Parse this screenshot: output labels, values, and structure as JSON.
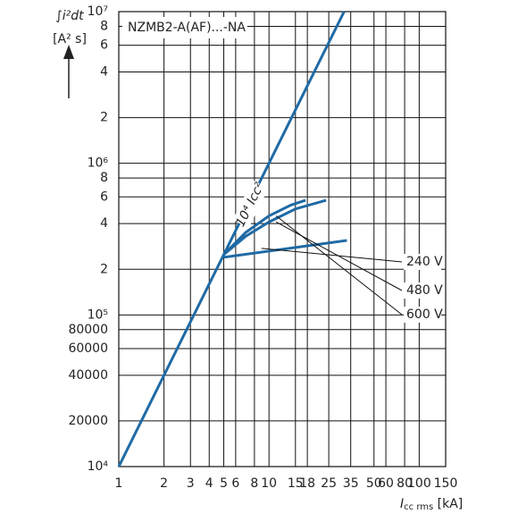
{
  "chart_data": {
    "type": "line",
    "title": "NZMB2-A(AF)...-NA",
    "y_label": [
      "∫i²dt",
      "[A² s]"
    ],
    "x_label": [
      "I",
      "cc rms",
      " [kA]"
    ],
    "log_x": true,
    "log_y": true,
    "grid": true,
    "xlim": [
      1,
      150
    ],
    "ylim": [
      10000,
      10000000
    ],
    "xticks": [
      1,
      2,
      3,
      4,
      5,
      6,
      8,
      10,
      15,
      18,
      25,
      35,
      50,
      60,
      80,
      100,
      150
    ],
    "yticks": [
      {
        "value": 10000,
        "label": "10⁴"
      },
      20000,
      40000,
      60000,
      80000,
      {
        "value": 100000,
        "label": "10⁵"
      },
      {
        "value": 200000,
        "label": "2"
      },
      {
        "value": 400000,
        "label": "4"
      },
      {
        "value": 600000,
        "label": "6"
      },
      {
        "value": 800000,
        "label": "8"
      },
      {
        "value": 1000000,
        "label": "10⁶"
      },
      {
        "value": 2000000,
        "label": "2"
      },
      {
        "value": 4000000,
        "label": "4"
      },
      {
        "value": 6000000,
        "label": "6"
      },
      {
        "value": 8000000,
        "label": "8"
      },
      {
        "value": 10000000,
        "label": "10⁷"
      }
    ],
    "series": [
      {
        "name": "10⁴ Icc²",
        "color": "#1f6aa5",
        "x": [
          1,
          31.62
        ],
        "values": [
          10000,
          10000000
        ]
      },
      {
        "name": "240 V",
        "color": "#1f6aa5",
        "x": [
          5,
          33
        ],
        "values": [
          240000,
          310000
        ]
      },
      {
        "name": "480 V",
        "color": "#1f6aa5",
        "x": [
          5,
          7,
          10,
          15,
          24
        ],
        "values": [
          250000,
          330000,
          410000,
          500000,
          570000
        ]
      },
      {
        "name": "600 V",
        "color": "#1f6aa5",
        "x": [
          5,
          7,
          10,
          14,
          17.5
        ],
        "values": [
          250000,
          350000,
          450000,
          530000,
          570000
        ]
      }
    ]
  }
}
